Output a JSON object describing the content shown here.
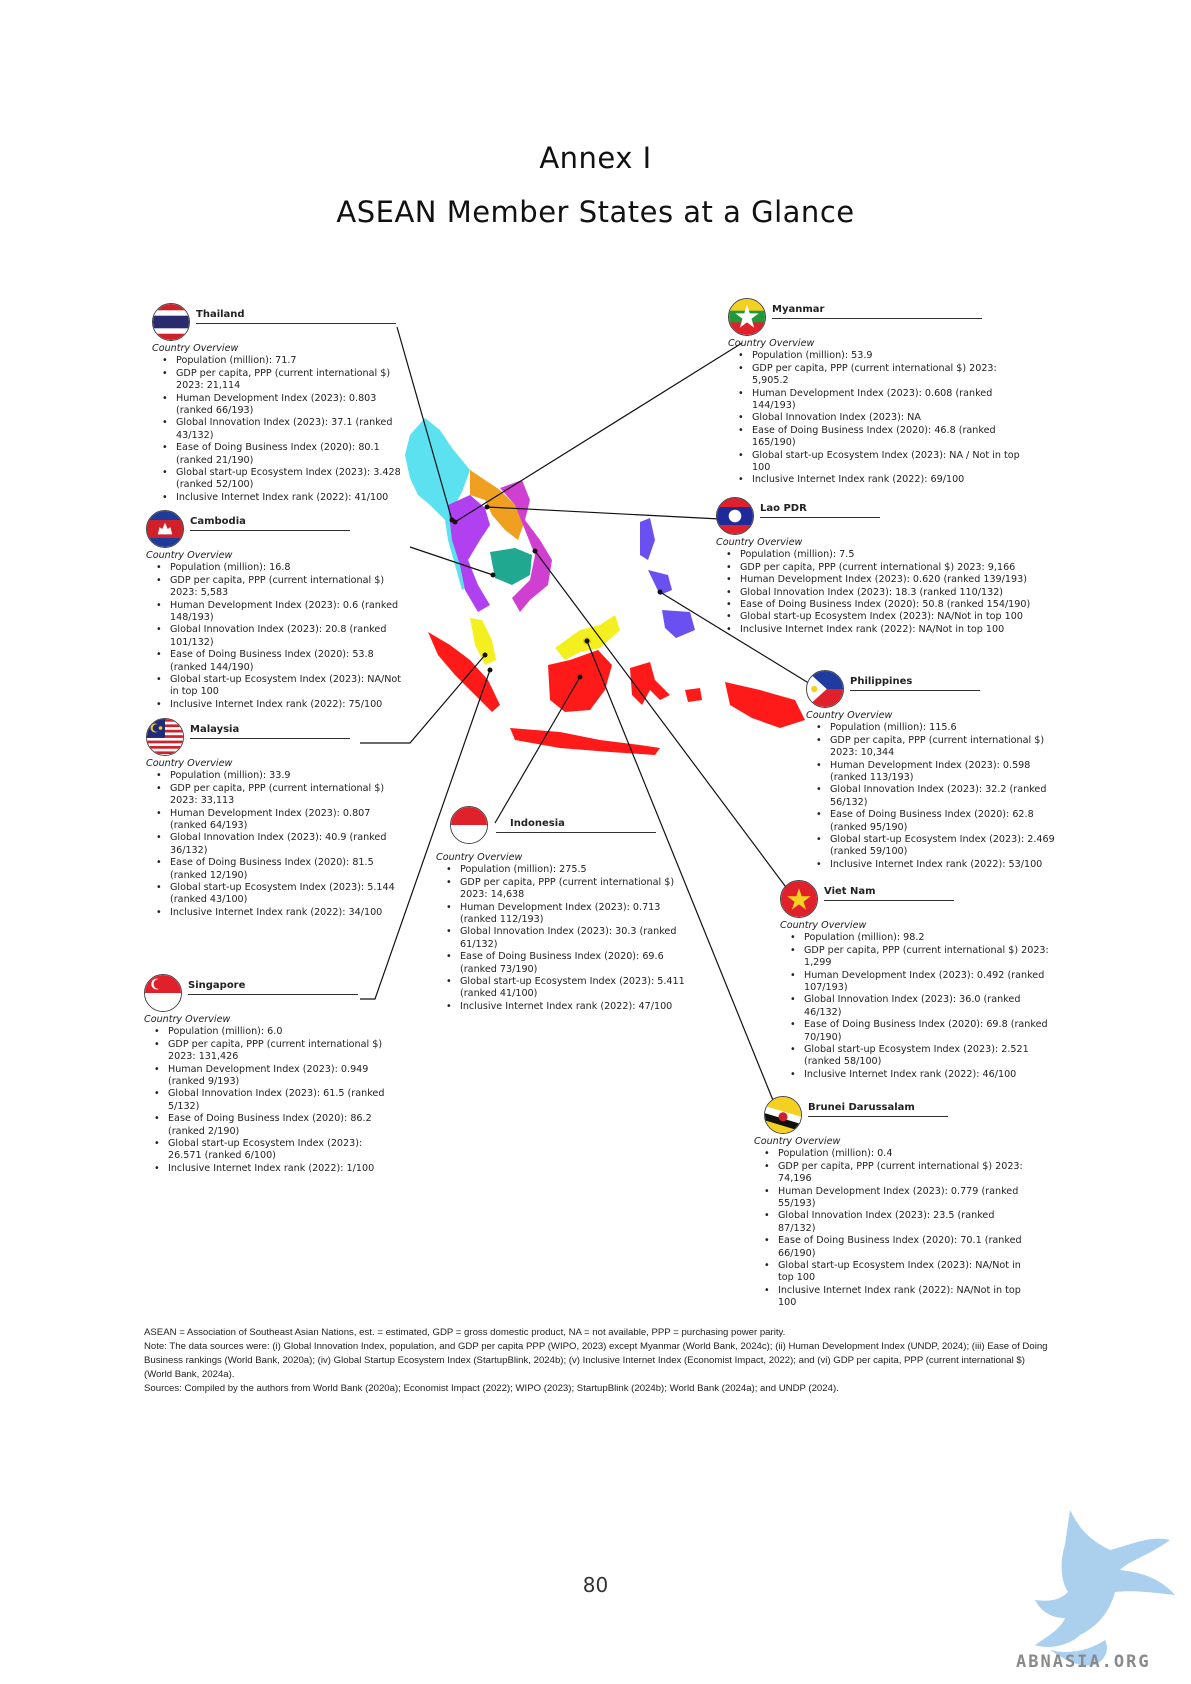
{
  "header": {
    "annex": "Annex I",
    "title": "ASEAN Member States at a Glance"
  },
  "overview_label": "Country Overview",
  "countries": {
    "thailand": {
      "name": "Thailand",
      "items": [
        "Population (million): 71.7",
        "GDP per capita, PPP (current international $) 2023: 21,114",
        "Human Development Index (2023): 0.803 (ranked 66/193)",
        "Global Innovation Index (2023): 37.1 (ranked 43/132)",
        "Ease of Doing Business Index (2020): 80.1 (ranked 21/190)",
        "Global start-up Ecosystem Index (2023): 3.428 (ranked 52/100)",
        "Inclusive Internet Index rank (2022): 41/100"
      ]
    },
    "cambodia": {
      "name": "Cambodia",
      "items": [
        "Population (million): 16.8",
        "GDP per capita, PPP (current international $) 2023: 5,583",
        "Human Development Index (2023): 0.6 (ranked 148/193)",
        "Global Innovation Index (2023): 20.8 (ranked 101/132)",
        "Ease of Doing Business Index (2020): 53.8 (ranked 144/190)",
        "Global start-up Ecosystem Index (2023): NA/Not in top 100",
        "Inclusive Internet Index rank (2022): 75/100"
      ]
    },
    "malaysia": {
      "name": "Malaysia",
      "items": [
        "Population (million): 33.9",
        "GDP per capita, PPP (current international $) 2023: 33,113",
        "Human Development Index (2023): 0.807 (ranked 64/193)",
        "Global Innovation Index (2023): 40.9 (ranked 36/132)",
        "Ease of Doing Business Index (2020): 81.5 (ranked 12/190)",
        "Global start-up Ecosystem Index (2023): 5.144 (ranked 43/100)",
        "Inclusive Internet Index rank (2022): 34/100"
      ]
    },
    "singapore": {
      "name": "Singapore",
      "items": [
        "Population (million): 6.0",
        "GDP per capita, PPP (current international $) 2023: 131,426",
        "Human Development Index (2023): 0.949 (ranked 9/193)",
        "Global Innovation Index (2023): 61.5 (ranked 5/132)",
        "Ease of Doing Business Index (2020): 86.2 (ranked 2/190)",
        "Global start-up Ecosystem Index (2023): 26.571 (ranked 6/100)",
        "Inclusive Internet Index rank (2022): 1/100"
      ]
    },
    "indonesia": {
      "name": "Indonesia",
      "items": [
        "Population (million): 275.5",
        "GDP per capita, PPP (current international $) 2023: 14,638",
        "Human Development Index (2023): 0.713 (ranked 112/193)",
        "Global Innovation Index (2023): 30.3 (ranked 61/132)",
        "Ease of Doing Business Index (2020): 69.6 (ranked 73/190)",
        "Global start-up Ecosystem Index (2023): 5.411 (ranked 41/100)",
        "Inclusive Internet Index rank (2022): 47/100"
      ]
    },
    "myanmar": {
      "name": "Myanmar",
      "items": [
        "Population (million): 53.9",
        "GDP per capita, PPP (current international $) 2023: 5,905.2",
        "Human Development Index (2023): 0.608 (ranked 144/193)",
        "Global Innovation Index (2023): NA",
        "Ease of Doing Business Index (2020): 46.8 (ranked 165/190)",
        "Global start-up Ecosystem Index (2023): NA / Not in top 100",
        "Inclusive Internet Index rank (2022): 69/100"
      ]
    },
    "laos": {
      "name": "Lao PDR",
      "items": [
        "Population (million): 7.5",
        "GDP per capita, PPP (current international $) 2023: 9,166",
        "Human Development Index (2023): 0.620 (ranked 139/193)",
        "Global Innovation Index (2023): 18.3 (ranked 110/132)",
        "Ease of Doing Business Index (2020): 50.8 (ranked 154/190)",
        "Global start-up Ecosystem Index (2023): NA/Not in top 100",
        "Inclusive Internet Index rank (2022): NA/Not in top 100"
      ]
    },
    "philippines": {
      "name": "Philippines",
      "items": [
        "Population (million): 115.6",
        "GDP per capita, PPP (current international $) 2023: 10,344",
        "Human Development Index (2023): 0.598 (ranked 113/193)",
        "Global Innovation Index (2023): 32.2 (ranked 56/132)",
        "Ease of Doing Business Index (2020): 62.8 (ranked 95/190)",
        "Global start-up Ecosystem Index (2023): 2.469 (ranked 59/100)",
        "Inclusive Internet Index rank (2022): 53/100"
      ]
    },
    "vietnam": {
      "name": "Viet Nam",
      "items": [
        "Population (million): 98.2",
        "GDP per capita, PPP (current international $) 2023: 1,299",
        "Human Development Index (2023): 0.492 (ranked 107/193)",
        "Global Innovation Index (2023): 36.0 (ranked 46/132)",
        "Ease of Doing Business Index (2020): 69.8 (ranked 70/190)",
        "Global start-up Ecosystem Index (2023): 2.521 (ranked 58/100)",
        "Inclusive Internet Index rank (2022): 46/100"
      ]
    },
    "brunei": {
      "name": "Brunei Darussalam",
      "items": [
        "Population (million): 0.4",
        "GDP per capita, PPP (current international $) 2023: 74,196",
        "Human Development Index (2023): 0.779 (ranked 55/193)",
        "Global Innovation Index (2023): 23.5 (ranked 87/132)",
        "Ease of Doing Business Index (2020): 70.1 (ranked 66/190)",
        "Global start-up Ecosystem Index (2023): NA/Not in top 100",
        "Inclusive Internet Index rank (2022): NA/Not in top 100"
      ]
    }
  },
  "footnotes": {
    "abbreviations": "ASEAN = Association of Southeast Asian Nations, est. = estimated, GDP = gross domestic product, NA = not available, PPP = purchasing power parity.",
    "note": "Note: The data sources were: (i) Global Innovation Index, population, and GDP per capita PPP (WIPO, 2023) except Myanmar (World Bank, 2024c); (ii) Human Development Index (UNDP, 2024); (iii) Ease of Doing Business rankings (World Bank, 2020a); (iv) Global Startup Ecosystem Index (StartupBlink, 2024b); (v) Inclusive Internet Index (Economist Impact, 2022); and (vi) GDP per capita, PPP (current international $) (World Bank, 2024a).",
    "sources": "Sources: Compiled by the authors from World Bank (2020a); Economist Impact (2022); WIPO (2023); StartupBlink (2024b); World Bank (2024a); and UNDP (2024)."
  },
  "page_number": "80",
  "watermark": "ABNASIA.ORG",
  "colors": {
    "myanmar": "#5ce1f0",
    "thailand": "#b040f0",
    "laos": "#f0a020",
    "cambodia": "#20a890",
    "vietnam": "#d040d0",
    "malaysia": "#f4f020",
    "indonesia": "#ff1a1a",
    "philippines": "#6a50f0",
    "brunei": "#f4f020"
  }
}
